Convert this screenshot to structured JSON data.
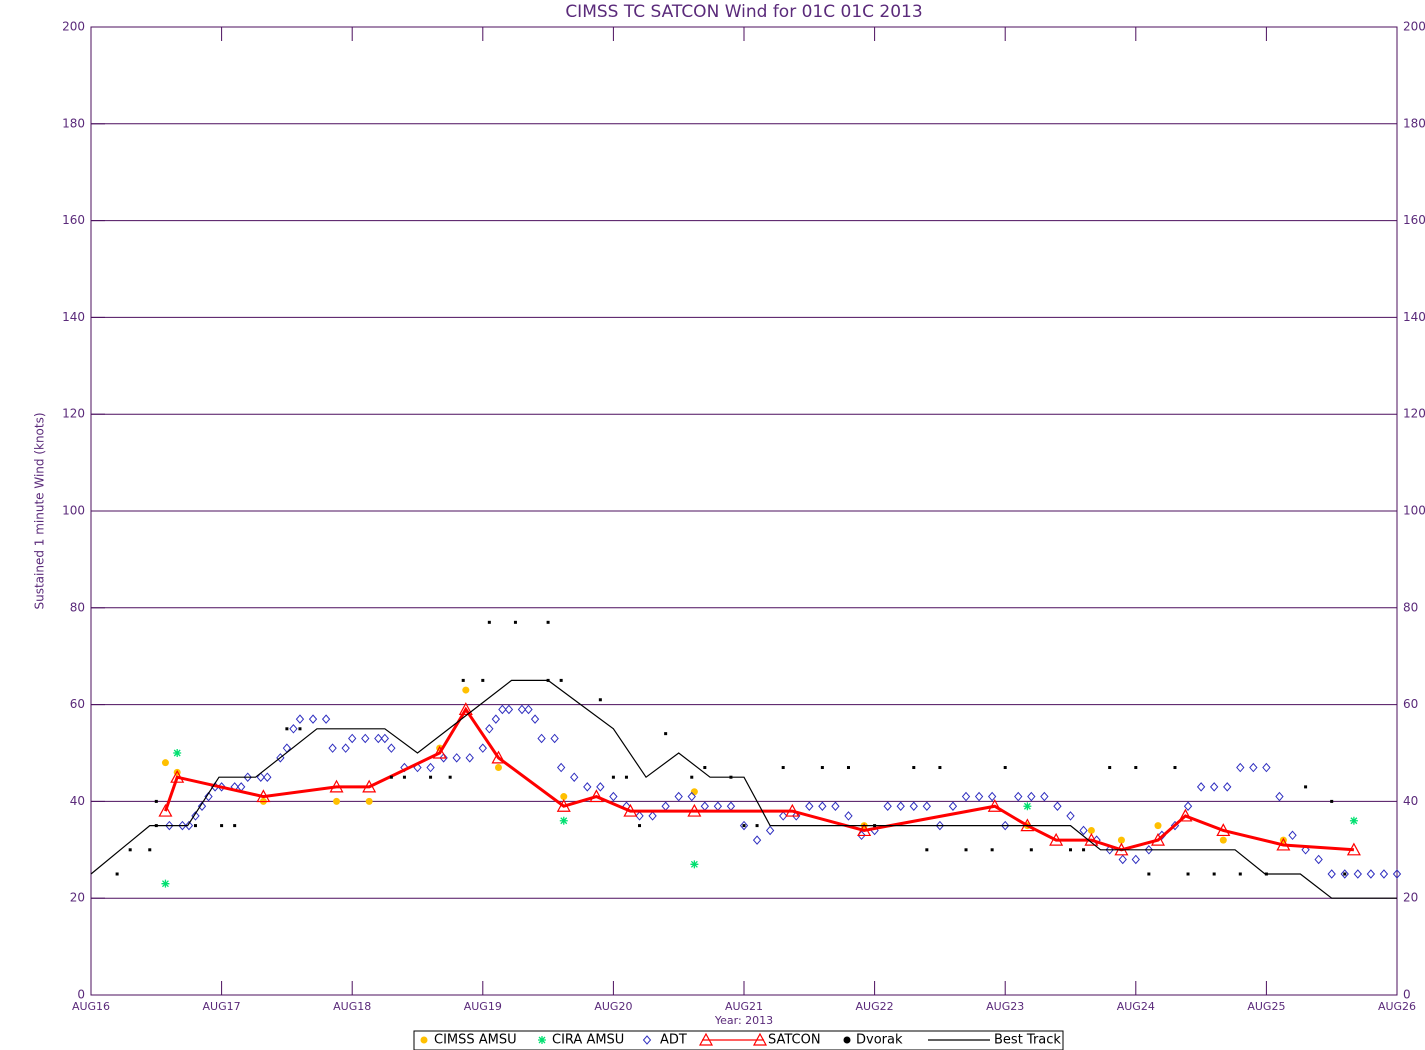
{
  "chart_data": {
    "type": "line",
    "title": "CIMSS TC SATCON Wind for  01C 01C 2013",
    "y_label": "Sustained 1 minute Wind (knots)",
    "x_label": "Year: 2013",
    "xlim": [
      0,
      10
    ],
    "xticks": [
      {
        "value": 0,
        "label": "AUG16"
      },
      {
        "value": 1,
        "label": "AUG17"
      },
      {
        "value": 2,
        "label": "AUG18"
      },
      {
        "value": 3,
        "label": "AUG19"
      },
      {
        "value": 4,
        "label": "AUG20"
      },
      {
        "value": 5,
        "label": "AUG21"
      },
      {
        "value": 6,
        "label": "AUG22"
      },
      {
        "value": 7,
        "label": "AUG23"
      },
      {
        "value": 8,
        "label": "AUG24"
      },
      {
        "value": 9,
        "label": "AUG25"
      },
      {
        "value": 10,
        "label": "AUG26"
      }
    ],
    "ylim": [
      0,
      200
    ],
    "yticks": [
      0,
      20,
      40,
      60,
      80,
      100,
      120,
      140,
      160,
      180,
      200
    ],
    "grid": true,
    "legend": "bottom",
    "series": [
      {
        "name": "CIMSS AMSU",
        "color": "#ffc000",
        "style": "markers",
        "marker": "circle",
        "x": [
          0.57,
          0.66,
          1.32,
          1.88,
          2.13,
          2.67,
          2.87,
          3.12,
          3.62,
          4.62,
          5.92,
          7.17,
          7.66,
          7.89,
          8.17,
          8.67,
          9.13
        ],
        "values": [
          48,
          46,
          40,
          40,
          40,
          51,
          63,
          47,
          41,
          42,
          35,
          35,
          34,
          32,
          35,
          32,
          32
        ]
      },
      {
        "name": "CIRA AMSU",
        "color": "#00e070",
        "style": "markers",
        "marker": "star",
        "x": [
          0.57,
          0.66,
          3.62,
          4.62,
          7.17,
          9.67
        ],
        "values": [
          23,
          50,
          36,
          27,
          39,
          36
        ]
      },
      {
        "name": "ADT",
        "color": "#3030c0",
        "style": "markers",
        "marker": "diamond",
        "x": [
          0.6,
          0.7,
          0.75,
          0.8,
          0.85,
          0.9,
          0.95,
          1.0,
          1.1,
          1.15,
          1.2,
          1.3,
          1.35,
          1.45,
          1.5,
          1.55,
          1.6,
          1.7,
          1.8,
          1.85,
          1.95,
          2.0,
          2.1,
          2.2,
          2.25,
          2.3,
          2.4,
          2.5,
          2.6,
          2.7,
          2.8,
          2.9,
          3.0,
          3.05,
          3.1,
          3.15,
          3.2,
          3.3,
          3.35,
          3.4,
          3.45,
          3.55,
          3.6,
          3.7,
          3.8,
          3.9,
          4.0,
          4.1,
          4.2,
          4.3,
          4.4,
          4.5,
          4.6,
          4.7,
          4.8,
          4.9,
          5.0,
          5.1,
          5.2,
          5.3,
          5.4,
          5.5,
          5.6,
          5.7,
          5.8,
          5.9,
          6.0,
          6.1,
          6.2,
          6.3,
          6.4,
          6.5,
          6.6,
          6.7,
          6.8,
          6.9,
          7.0,
          7.1,
          7.2,
          7.3,
          7.4,
          7.5,
          7.6,
          7.7,
          7.8,
          7.9,
          8.0,
          8.1,
          8.2,
          8.3,
          8.4,
          8.5,
          8.6,
          8.7,
          8.8,
          8.9,
          9.0,
          9.1,
          9.2,
          9.3,
          9.4,
          9.5,
          9.6,
          9.7,
          9.8,
          9.9,
          10.0
        ],
        "values": [
          35,
          35,
          35,
          37,
          39,
          41,
          43,
          43,
          43,
          43,
          45,
          45,
          45,
          49,
          51,
          55,
          57,
          57,
          57,
          51,
          51,
          53,
          53,
          53,
          53,
          51,
          47,
          47,
          47,
          49,
          49,
          49,
          51,
          55,
          57,
          59,
          59,
          59,
          59,
          57,
          53,
          53,
          47,
          45,
          43,
          43,
          41,
          39,
          37,
          37,
          39,
          41,
          41,
          39,
          39,
          39,
          35,
          32,
          34,
          37,
          37,
          39,
          39,
          39,
          37,
          33,
          34,
          39,
          39,
          39,
          39,
          35,
          39,
          41,
          41,
          41,
          35,
          41,
          41,
          41,
          39,
          37,
          34,
          32,
          30,
          28,
          28,
          30,
          33,
          35,
          39,
          43,
          43,
          43,
          47,
          47,
          47,
          41,
          33,
          30,
          28,
          25,
          25,
          25,
          25,
          25,
          25
        ]
      },
      {
        "name": "SATCON",
        "color": "#ff0000",
        "style": "line+markers",
        "marker": "triangle",
        "x": [
          0.57,
          0.66,
          1.32,
          1.88,
          2.13,
          2.67,
          2.87,
          3.12,
          3.62,
          3.87,
          4.13,
          4.62,
          5.37,
          5.92,
          6.92,
          7.17,
          7.39,
          7.66,
          7.89,
          8.17,
          8.38,
          8.67,
          9.13,
          9.67
        ],
        "values": [
          38,
          45,
          41,
          43,
          43,
          50,
          59,
          49,
          39,
          41,
          38,
          38,
          38,
          34,
          39,
          35,
          32,
          32,
          30,
          32,
          37,
          34,
          31,
          30
        ]
      },
      {
        "name": "Dvorak",
        "color": "#000000",
        "style": "markers",
        "marker": "dot",
        "x": [
          0.2,
          0.3,
          0.45,
          0.5,
          0.5,
          0.8,
          1.0,
          1.1,
          1.5,
          1.6,
          2.3,
          2.4,
          2.6,
          2.75,
          2.85,
          3.0,
          3.05,
          3.25,
          3.5,
          3.5,
          3.6,
          3.9,
          4.0,
          4.1,
          4.2,
          4.4,
          4.6,
          4.7,
          4.9,
          5.0,
          5.1,
          5.3,
          5.6,
          5.8,
          6.0,
          6.3,
          6.4,
          6.5,
          6.7,
          6.9,
          7.0,
          7.2,
          7.5,
          7.6,
          7.8,
          8.0,
          8.1,
          8.3,
          8.4,
          8.6,
          8.8,
          9.0,
          9.3,
          9.5,
          9.6
        ],
        "values": [
          25,
          30,
          30,
          35,
          40,
          35,
          35,
          35,
          55,
          55,
          45,
          45,
          45,
          45,
          65,
          65,
          77,
          77,
          77,
          65,
          65,
          61,
          45,
          45,
          35,
          54,
          45,
          47,
          45,
          35,
          35,
          47,
          47,
          47,
          35,
          47,
          30,
          47,
          30,
          30,
          47,
          30,
          30,
          30,
          47,
          47,
          25,
          47,
          25,
          25,
          25,
          25,
          43,
          40,
          25
        ]
      },
      {
        "name": "Best Track",
        "color": "#000000",
        "style": "line",
        "marker": "none",
        "x": [
          0,
          0.45,
          0.74,
          0.98,
          1.26,
          1.73,
          2.25,
          2.5,
          2.98,
          3.22,
          3.5,
          3.75,
          4.0,
          4.25,
          4.5,
          4.74,
          5.0,
          5.2,
          7.5,
          7.73,
          8.76,
          8.99,
          9.26,
          9.5,
          10
        ],
        "values": [
          25,
          35,
          35,
          45,
          45,
          55,
          55,
          50,
          60,
          65,
          65,
          60,
          55,
          45,
          50,
          45,
          45,
          35,
          35,
          30,
          30,
          25,
          25,
          20,
          20
        ]
      }
    ]
  }
}
